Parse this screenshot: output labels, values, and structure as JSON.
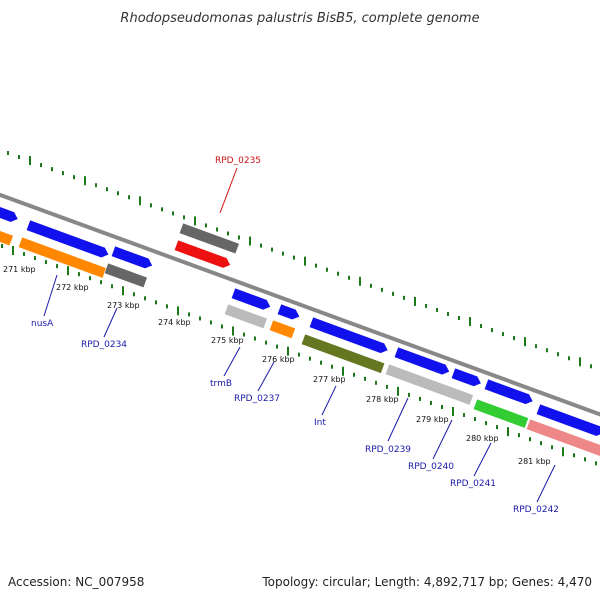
{
  "title": "Rhodopseudomonas palustris BisB5, complete genome",
  "footer": {
    "accession": "Accession: NC_007958",
    "summary": "Topology: circular; Length: 4,892,717 bp; Genes: 4,470"
  },
  "colors": {
    "backbone": "#888888",
    "ticks": "#1a7a1a",
    "label_default": "#1a1aaa",
    "label_highlight": "#cc1111"
  },
  "scale_labels": [
    "271 kbp",
    "272 kbp",
    "273 kbp",
    "274 kbp",
    "275 kbp",
    "276 kbp",
    "277 kbp",
    "278 kbp",
    "279 kbp",
    "280 kbp",
    "281 kbp"
  ],
  "genes": [
    {
      "id": "g0",
      "color": "#1111ee"
    },
    {
      "id": "g1",
      "color": "#1111ee"
    },
    {
      "id": "g2",
      "color": "#1111ee"
    },
    {
      "id": "g3",
      "color": "#ff8800"
    },
    {
      "id": "g4",
      "color": "#ff8800"
    },
    {
      "id": "g5",
      "color": "#666666"
    },
    {
      "id": "RPD_0235_a",
      "color": "#666666"
    },
    {
      "id": "RPD_0235_b",
      "color": "#ee1111"
    },
    {
      "id": "trmB_a",
      "color": "#1111ee"
    },
    {
      "id": "trmB_b",
      "color": "#bbbbbb"
    },
    {
      "id": "g10",
      "color": "#1111ee"
    },
    {
      "id": "g11",
      "color": "#ff8800"
    },
    {
      "id": "g12",
      "color": "#1111ee"
    },
    {
      "id": "Int",
      "color": "#667722"
    },
    {
      "id": "g14",
      "color": "#1111ee"
    },
    {
      "id": "RPD_0239",
      "color": "#bbbbbb"
    },
    {
      "id": "g16",
      "color": "#1111ee"
    },
    {
      "id": "RPD_0241",
      "color": "#33cc33"
    },
    {
      "id": "g18",
      "color": "#1111ee"
    },
    {
      "id": "RPD_0242",
      "color": "#ee8888"
    },
    {
      "id": "g20",
      "color": "#1111ee"
    }
  ],
  "gene_labels": [
    {
      "text": "RPD_0235",
      "highlight": true
    },
    {
      "text": "nusA",
      "highlight": false
    },
    {
      "text": "RPD_0234",
      "highlight": false
    },
    {
      "text": "trmB",
      "highlight": false
    },
    {
      "text": "RPD_0237",
      "highlight": false
    },
    {
      "text": "Int",
      "highlight": false
    },
    {
      "text": "RPD_0239",
      "highlight": false
    },
    {
      "text": "RPD_0240",
      "highlight": false
    },
    {
      "text": "RPD_0241",
      "highlight": false
    },
    {
      "text": "RPD_0242",
      "highlight": false
    }
  ]
}
